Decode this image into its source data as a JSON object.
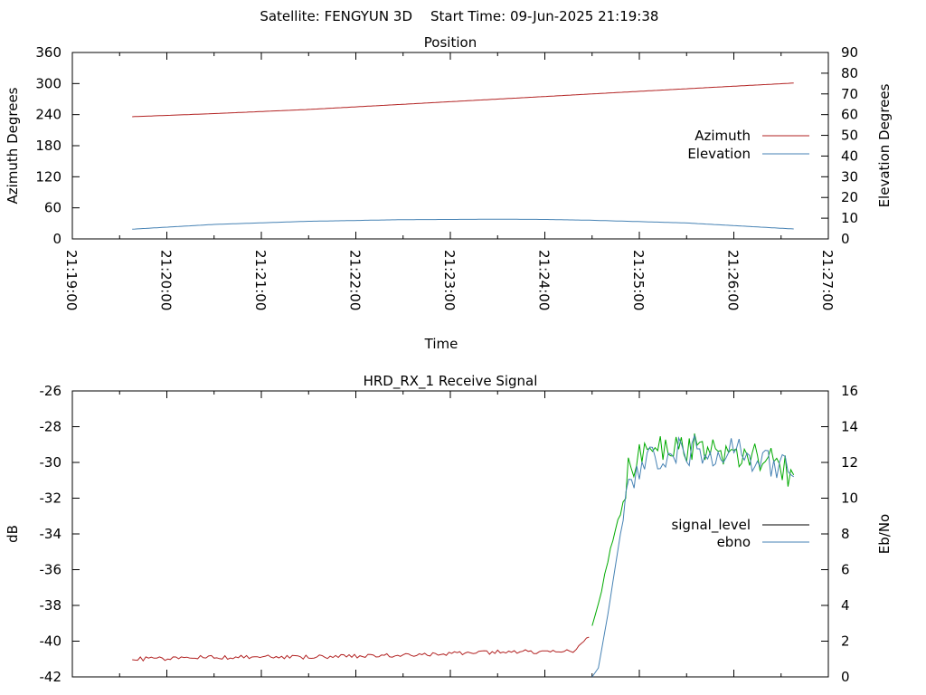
{
  "header": {
    "satellite_label": "Satellite: FENGYUN 3D",
    "start_time_label": "Start Time: 09-Jun-2025 21:19:38"
  },
  "chart_data": [
    {
      "type": "line",
      "title": "Position",
      "xlabel": "Time",
      "ylabel": "Azimuth Degrees",
      "y2label": "Elevation Degrees",
      "x_range": [
        "21:19:00",
        "21:27:00"
      ],
      "x_ticks": [
        "21:19:00",
        "21:20:00",
        "21:21:00",
        "21:22:00",
        "21:23:00",
        "21:24:00",
        "21:25:00",
        "21:26:00",
        "21:27:00"
      ],
      "ylim": [
        0,
        360
      ],
      "y_ticks": [
        0,
        60,
        120,
        180,
        240,
        300,
        360
      ],
      "y2lim": [
        0,
        90
      ],
      "y2_ticks": [
        0,
        10,
        20,
        30,
        40,
        50,
        60,
        70,
        80,
        90
      ],
      "legend": "right",
      "grid": false,
      "series": [
        {
          "name": "Azimuth",
          "axis": "y",
          "color": "#b22222",
          "x": [
            "21:19:38",
            "21:20:30",
            "21:21:30",
            "21:22:30",
            "21:23:30",
            "21:24:30",
            "21:25:30",
            "21:26:38"
          ],
          "values": [
            236,
            242,
            250,
            260,
            270,
            280,
            290,
            301
          ]
        },
        {
          "name": "Elevation",
          "axis": "y2",
          "color": "#4682b4",
          "x": [
            "21:19:38",
            "21:20:30",
            "21:21:30",
            "21:22:30",
            "21:23:30",
            "21:24:00",
            "21:24:30",
            "21:25:30",
            "21:26:38"
          ],
          "values": [
            4.7,
            7.0,
            8.5,
            9.3,
            9.5,
            9.4,
            9.0,
            7.7,
            4.8
          ]
        }
      ]
    },
    {
      "type": "line",
      "title": "HRD_RX_1 Receive Signal",
      "xlabel": "",
      "ylabel": "dB",
      "y2label": "Eb/No",
      "x_range": [
        "21:19:00",
        "21:27:00"
      ],
      "ylim": [
        -42,
        -26
      ],
      "y_ticks": [
        -42,
        -40,
        -38,
        -36,
        -34,
        -32,
        -30,
        -28,
        -26
      ],
      "y2lim": [
        0,
        16
      ],
      "y2_ticks": [
        0,
        2,
        4,
        6,
        8,
        10,
        12,
        14,
        16
      ],
      "legend": "right",
      "grid": false,
      "series": [
        {
          "name": "signal_level",
          "axis": "y",
          "color": "#000000",
          "segment_colors": {
            "low": "#b22222",
            "high": "#00aa00"
          },
          "x": [
            "21:19:38",
            "21:20:30",
            "21:21:30",
            "21:22:30",
            "21:23:30",
            "21:24:00",
            "21:24:14",
            "21:24:20",
            "21:24:28",
            "21:24:34",
            "21:24:40",
            "21:24:48",
            "21:24:53",
            "21:25:00",
            "21:25:20",
            "21:25:40",
            "21:26:00",
            "21:26:20",
            "21:26:38"
          ],
          "values": [
            -41.0,
            -40.9,
            -40.9,
            -40.8,
            -40.6,
            -40.6,
            -40.6,
            -40.5,
            -39.8,
            -38.0,
            -35.5,
            -32.5,
            -30.5,
            -29.8,
            -29.0,
            -29.3,
            -29.4,
            -29.7,
            -30.7
          ]
        },
        {
          "name": "ebno",
          "axis": "y2",
          "color": "#4682b4",
          "x": [
            "21:24:30",
            "21:24:34",
            "21:24:40",
            "21:24:48",
            "21:24:55",
            "21:25:00",
            "21:25:20",
            "21:25:40",
            "21:26:00",
            "21:26:20",
            "21:26:38"
          ],
          "values": [
            0,
            0.5,
            3.5,
            8.0,
            11.0,
            11.8,
            12.8,
            12.6,
            12.5,
            12.2,
            11.2
          ]
        }
      ]
    }
  ]
}
